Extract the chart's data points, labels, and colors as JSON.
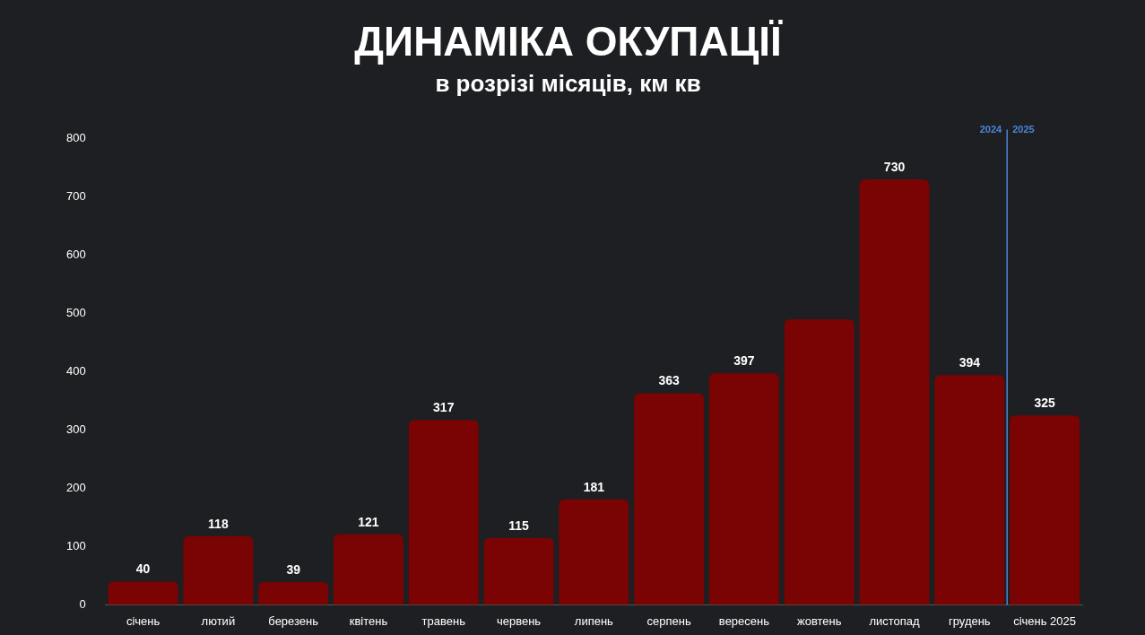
{
  "chart_data": {
    "type": "bar",
    "title": "ДИНАМІКА ОКУПАЦІЇ",
    "subtitle": "в розрізі місяців, км кв",
    "categories": [
      "січень",
      "лютий",
      "березень",
      "квітень",
      "травень",
      "червень",
      "липень",
      "серпень",
      "вересень",
      "жовтень",
      "листопад",
      "грудень",
      "січень 2025"
    ],
    "values": [
      40,
      118,
      39,
      121,
      317,
      115,
      181,
      363,
      397,
      490,
      730,
      394,
      325
    ],
    "value_labels": [
      "40",
      "118",
      "39",
      "121",
      "317",
      "115",
      "181",
      "363",
      "397",
      null,
      "730",
      "394",
      "325"
    ],
    "color": "#7a0303",
    "ylim": [
      0,
      800
    ],
    "yticks": [
      0,
      100,
      200,
      300,
      400,
      500,
      600,
      700,
      800
    ],
    "grid": false,
    "legend": false,
    "ref_lines": [
      {
        "axis": "x",
        "value": "січень 2025",
        "label": "2025",
        "color": "#4a86d8"
      }
    ],
    "annotations": [
      "2024"
    ]
  }
}
